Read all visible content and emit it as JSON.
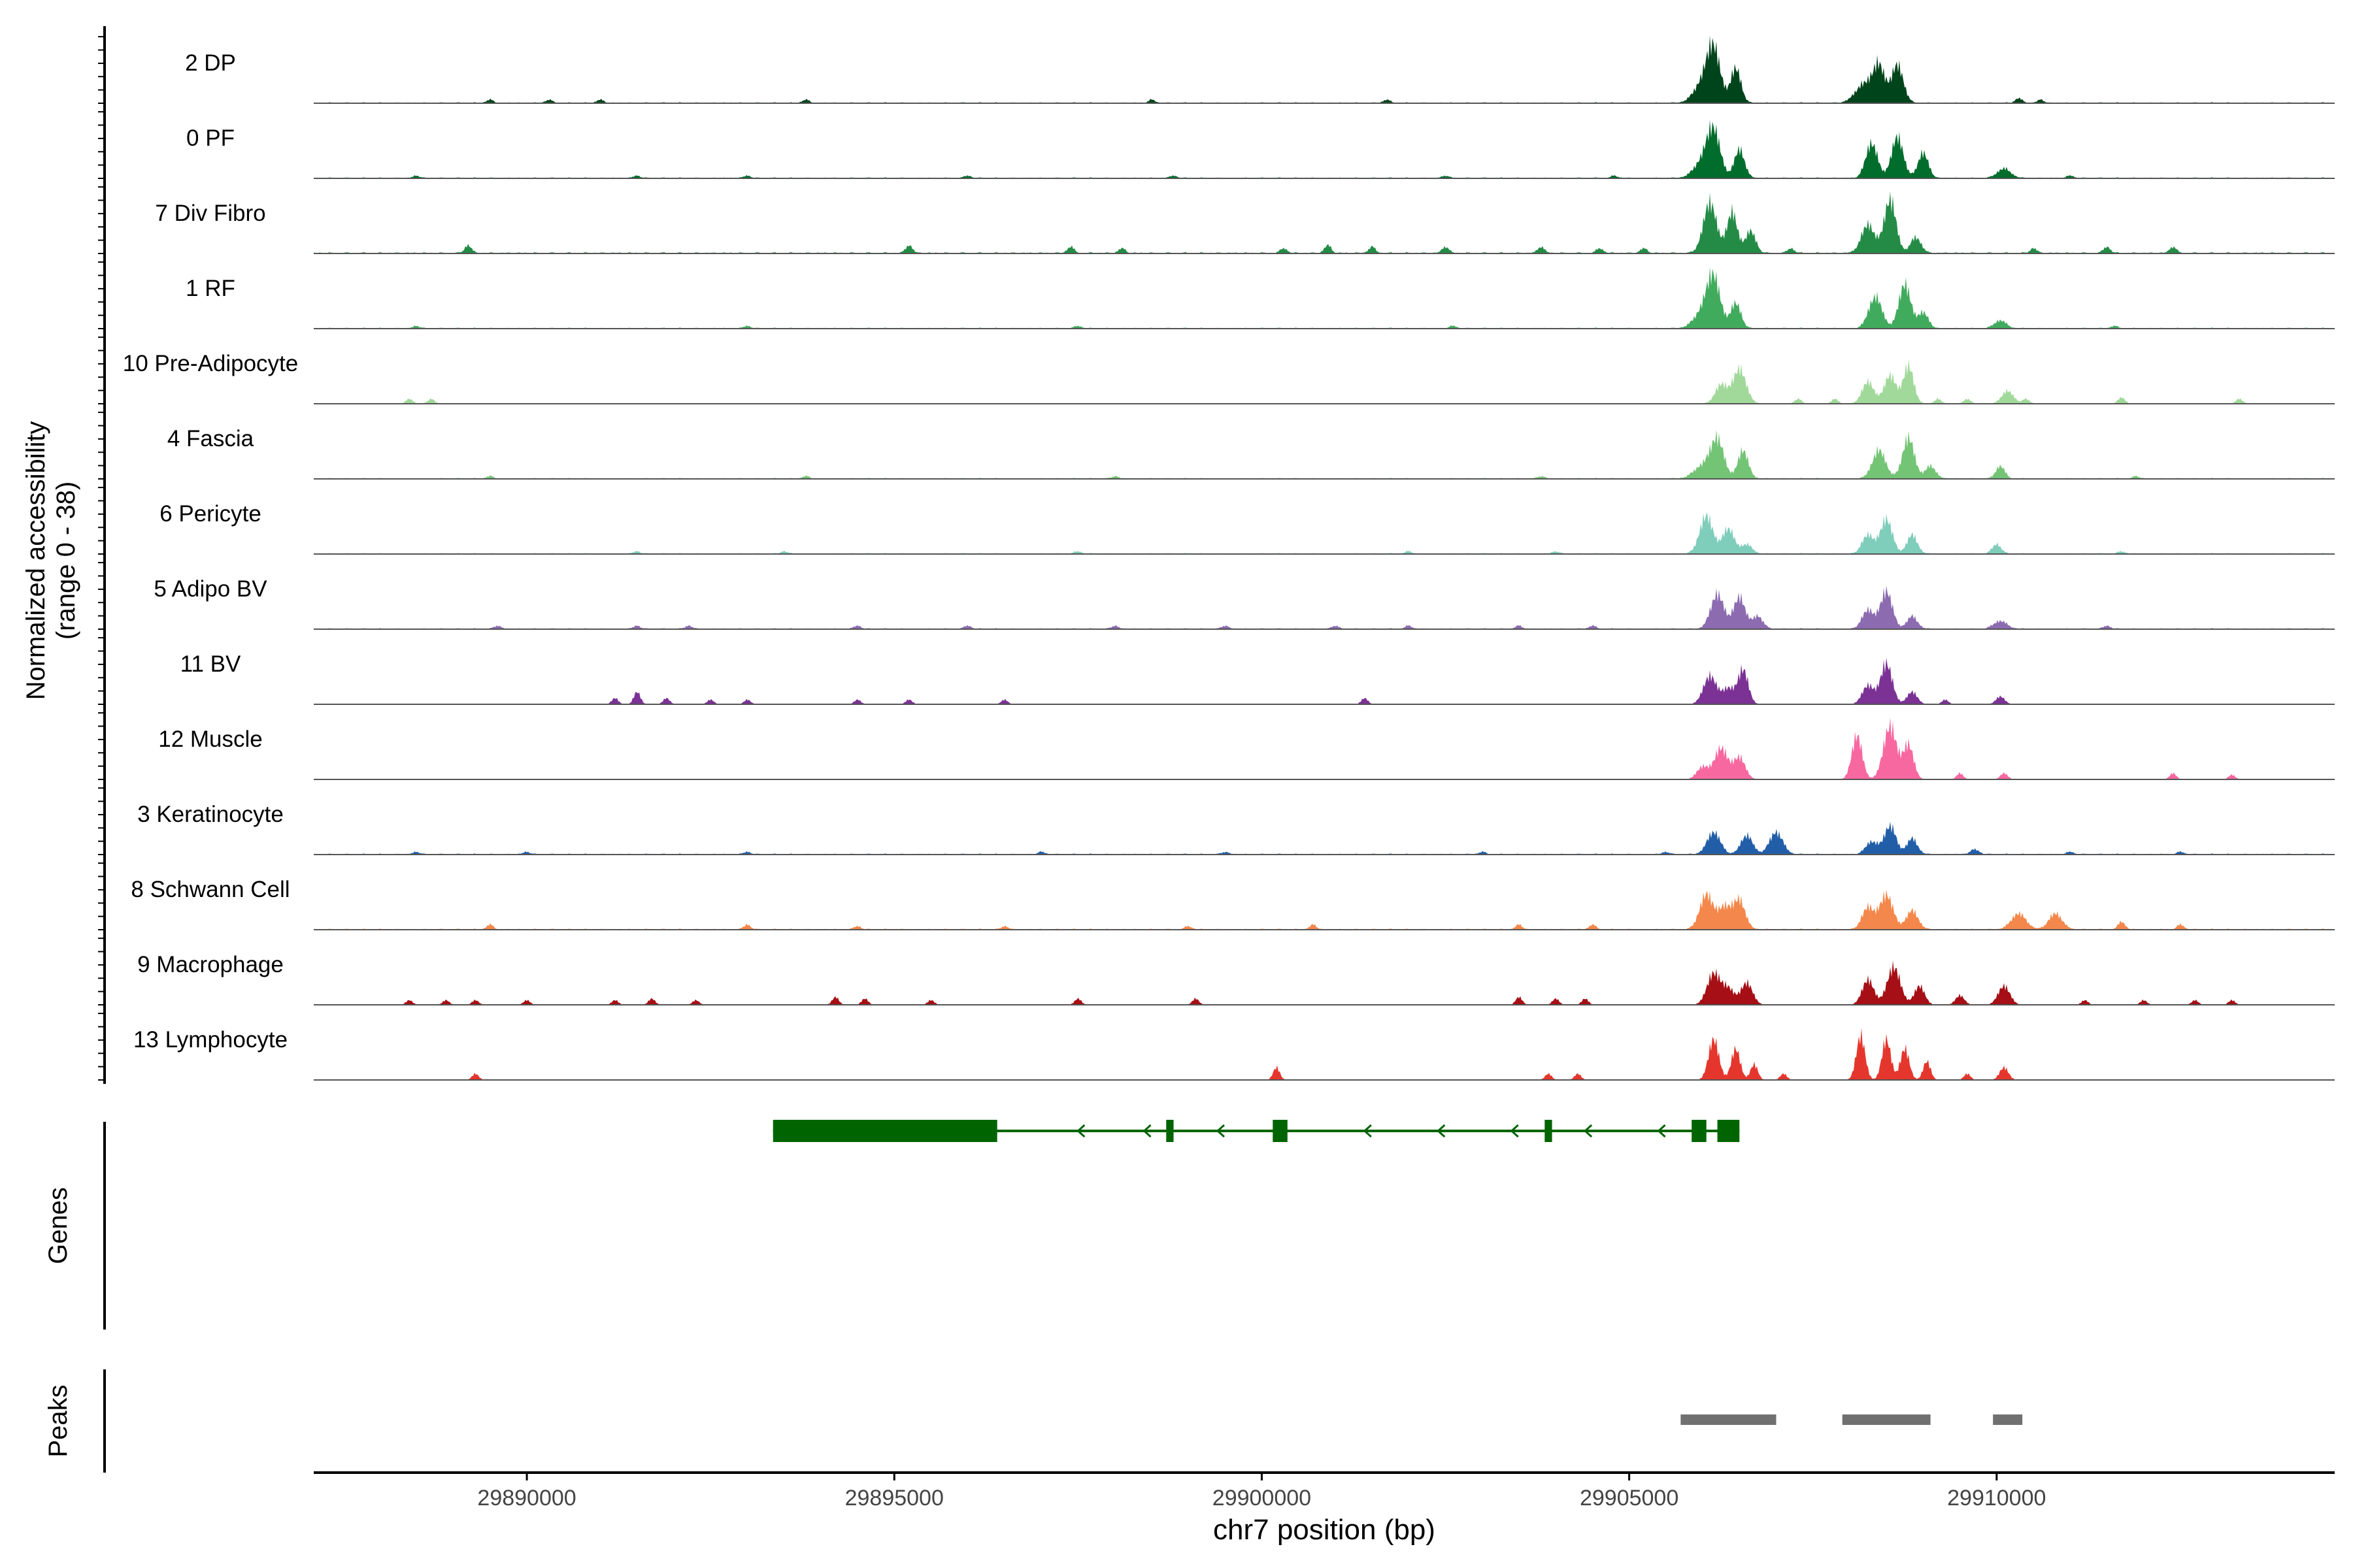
{
  "chart_data": {
    "type": "area",
    "title": "",
    "xlabel": "chr7 position (bp)",
    "ylabel_line1": "Normalized accessibility",
    "ylabel_line2": "(range 0 - 38)",
    "ylim": [
      0,
      38
    ],
    "xlim": [
      29887100,
      29914600
    ],
    "xticks": [
      {
        "value": 29890000,
        "label": "29890000"
      },
      {
        "value": 29895000,
        "label": "29895000"
      },
      {
        "value": 29900000,
        "label": "29900000"
      },
      {
        "value": 29905000,
        "label": "29905000"
      },
      {
        "value": 29910000,
        "label": "29910000"
      }
    ],
    "genes_label": "Genes",
    "peaks_label": "Peaks",
    "tracks": [
      {
        "name": "2 DP",
        "color": "#00441b",
        "baseline": 0.6,
        "peaks": [
          [
            29906150,
            90,
            32
          ],
          [
            29906450,
            70,
            22
          ],
          [
            29906000,
            120,
            12
          ],
          [
            29908400,
            80,
            22
          ],
          [
            29908650,
            80,
            24
          ],
          [
            29908200,
            120,
            12
          ]
        ],
        "blips": [
          [
            29889500,
            2
          ],
          [
            29890300,
            2
          ],
          [
            29891000,
            2
          ],
          [
            29893800,
            2
          ],
          [
            29898500,
            2
          ],
          [
            29901700,
            2
          ],
          [
            29910300,
            3
          ],
          [
            29910600,
            2
          ]
        ]
      },
      {
        "name": "0 PF",
        "color": "#006d2c",
        "baseline": 0.6,
        "peaks": [
          [
            29906150,
            90,
            28
          ],
          [
            29906500,
            70,
            18
          ],
          [
            29906000,
            120,
            10
          ],
          [
            29908300,
            80,
            22
          ],
          [
            29908650,
            80,
            26
          ],
          [
            29909000,
            70,
            16
          ],
          [
            29910100,
            90,
            6
          ]
        ],
        "blips": [
          [
            29888500,
            1.5
          ],
          [
            29891500,
            1.5
          ],
          [
            29893000,
            1.5
          ],
          [
            29896000,
            1.5
          ],
          [
            29898800,
            1.5
          ],
          [
            29902500,
            1.5
          ],
          [
            29904800,
            1.5
          ],
          [
            29911000,
            1.5
          ]
        ]
      },
      {
        "name": "7 Div Fibro",
        "color": "#238b45",
        "baseline": 0.8,
        "peaks": [
          [
            29906100,
            90,
            32
          ],
          [
            29906400,
            70,
            26
          ],
          [
            29906650,
            70,
            14
          ],
          [
            29908550,
            80,
            34
          ],
          [
            29908250,
            90,
            18
          ],
          [
            29908900,
            70,
            10
          ]
        ],
        "blips": [
          [
            29889200,
            5
          ],
          [
            29895200,
            5
          ],
          [
            29897400,
            4
          ],
          [
            29898100,
            3
          ],
          [
            29900300,
            3
          ],
          [
            29900900,
            5
          ],
          [
            29901500,
            4
          ],
          [
            29902500,
            4
          ],
          [
            29903800,
            4
          ],
          [
            29904600,
            3
          ],
          [
            29905200,
            3
          ],
          [
            29907200,
            3
          ],
          [
            29910500,
            3
          ],
          [
            29911500,
            4
          ],
          [
            29912400,
            4
          ]
        ]
      },
      {
        "name": "1 RF",
        "color": "#41ab5d",
        "baseline": 0.6,
        "peaks": [
          [
            29906150,
            90,
            30
          ],
          [
            29906450,
            70,
            16
          ],
          [
            29906000,
            120,
            10
          ],
          [
            29908350,
            90,
            20
          ],
          [
            29908750,
            80,
            28
          ],
          [
            29909000,
            70,
            10
          ],
          [
            29910050,
            80,
            5
          ]
        ],
        "blips": [
          [
            29888500,
            1.5
          ],
          [
            29893000,
            1.5
          ],
          [
            29897500,
            1.5
          ],
          [
            29902600,
            1.5
          ],
          [
            29911600,
            1.5
          ]
        ]
      },
      {
        "name": "10 Pre-Adipocyte",
        "color": "#a1d99b",
        "baseline": 0.3,
        "peaks": [
          [
            29906500,
            90,
            22
          ],
          [
            29906250,
            80,
            12
          ],
          [
            29908250,
            80,
            14
          ],
          [
            29908550,
            80,
            18
          ],
          [
            29908800,
            70,
            24
          ],
          [
            29910150,
            80,
            8
          ]
        ],
        "blips": [
          [
            29888400,
            3
          ],
          [
            29888700,
            3
          ],
          [
            29907300,
            3
          ],
          [
            29907800,
            3
          ],
          [
            29909200,
            3
          ],
          [
            29909600,
            3
          ],
          [
            29910400,
            3
          ],
          [
            29911700,
            4
          ],
          [
            29913300,
            3
          ]
        ]
      },
      {
        "name": "4 Fascia",
        "color": "#74c476",
        "baseline": 0.6,
        "peaks": [
          [
            29906200,
            90,
            24
          ],
          [
            29906550,
            70,
            18
          ],
          [
            29906000,
            120,
            8
          ],
          [
            29908400,
            90,
            18
          ],
          [
            29908800,
            80,
            26
          ],
          [
            29909100,
            70,
            8
          ],
          [
            29910050,
            60,
            8
          ]
        ],
        "blips": [
          [
            29889500,
            1.5
          ],
          [
            29893800,
            1.5
          ],
          [
            29898000,
            1.5
          ],
          [
            29903800,
            1.5
          ],
          [
            29911900,
            1.5
          ]
        ]
      },
      {
        "name": "6 Pericyte",
        "color": "#7fcdbb",
        "baseline": 0.6,
        "peaks": [
          [
            29906050,
            90,
            24
          ],
          [
            29906350,
            80,
            16
          ],
          [
            29906600,
            70,
            6
          ],
          [
            29908500,
            80,
            22
          ],
          [
            29908250,
            80,
            12
          ],
          [
            29908850,
            70,
            12
          ],
          [
            29910000,
            60,
            6
          ]
        ],
        "blips": [
          [
            29891500,
            1.5
          ],
          [
            29893500,
            1.5
          ],
          [
            29897500,
            1.5
          ],
          [
            29902000,
            1.5
          ],
          [
            29904000,
            1.5
          ],
          [
            29911700,
            1.5
          ]
        ]
      },
      {
        "name": "5 Adipo BV",
        "color": "#8c6bb1",
        "baseline": 0.6,
        "peaks": [
          [
            29906200,
            90,
            22
          ],
          [
            29906500,
            80,
            20
          ],
          [
            29906750,
            70,
            8
          ],
          [
            29908500,
            80,
            24
          ],
          [
            29908250,
            80,
            12
          ],
          [
            29908850,
            70,
            8
          ],
          [
            29910050,
            90,
            5
          ]
        ],
        "blips": [
          [
            29889600,
            2
          ],
          [
            29891500,
            2
          ],
          [
            29892200,
            2
          ],
          [
            29894500,
            2
          ],
          [
            29896000,
            2
          ],
          [
            29898000,
            2
          ],
          [
            29899500,
            2
          ],
          [
            29901000,
            2
          ],
          [
            29902000,
            2
          ],
          [
            29903500,
            2
          ],
          [
            29904500,
            2
          ],
          [
            29911500,
            2
          ]
        ]
      },
      {
        "name": "11 BV",
        "color": "#7b3294",
        "baseline": 0,
        "peaks": [
          [
            29906100,
            90,
            18
          ],
          [
            29906550,
            70,
            22
          ],
          [
            29906350,
            80,
            10
          ],
          [
            29908500,
            80,
            26
          ],
          [
            29908250,
            80,
            12
          ],
          [
            29908850,
            70,
            8
          ],
          [
            29910050,
            60,
            5
          ]
        ],
        "blips": [
          [
            29891200,
            4
          ],
          [
            29891500,
            8
          ],
          [
            29891900,
            4
          ],
          [
            29892500,
            3
          ],
          [
            29893000,
            3
          ],
          [
            29894500,
            3
          ],
          [
            29895200,
            3
          ],
          [
            29896500,
            3
          ],
          [
            29901400,
            4
          ],
          [
            29909300,
            3
          ]
        ]
      },
      {
        "name": "12 Muscle",
        "color": "#f768a1",
        "baseline": 0,
        "peaks": [
          [
            29906250,
            90,
            20
          ],
          [
            29906500,
            80,
            14
          ],
          [
            29906000,
            80,
            8
          ],
          [
            29908100,
            70,
            28
          ],
          [
            29908550,
            90,
            34
          ],
          [
            29908800,
            70,
            22
          ],
          [
            29910100,
            50,
            4
          ]
        ],
        "blips": [
          [
            29909500,
            4
          ],
          [
            29912400,
            4
          ],
          [
            29913200,
            3
          ]
        ]
      },
      {
        "name": "3 Keratinocyte",
        "color": "#225ea8",
        "baseline": 0.6,
        "peaks": [
          [
            29906150,
            90,
            14
          ],
          [
            29906600,
            80,
            12
          ],
          [
            29907000,
            90,
            14
          ],
          [
            29908550,
            80,
            18
          ],
          [
            29908300,
            80,
            8
          ],
          [
            29908850,
            70,
            10
          ],
          [
            29909700,
            60,
            3
          ]
        ],
        "blips": [
          [
            29888500,
            1.5
          ],
          [
            29890000,
            1.5
          ],
          [
            29893000,
            1.5
          ],
          [
            29897000,
            1.5
          ],
          [
            29899500,
            1.5
          ],
          [
            29903000,
            1.5
          ],
          [
            29905500,
            1.5
          ],
          [
            29911000,
            1.5
          ],
          [
            29912500,
            1.5
          ]
        ]
      },
      {
        "name": "8 Schwann Cell",
        "color": "#f4874b",
        "baseline": 0.6,
        "peaks": [
          [
            29906050,
            90,
            22
          ],
          [
            29906500,
            80,
            18
          ],
          [
            29906300,
            90,
            14
          ],
          [
            29908500,
            90,
            22
          ],
          [
            29908250,
            80,
            14
          ],
          [
            29908850,
            80,
            12
          ],
          [
            29910300,
            100,
            10
          ],
          [
            29910800,
            90,
            10
          ]
        ],
        "blips": [
          [
            29889500,
            3
          ],
          [
            29893000,
            3
          ],
          [
            29894500,
            2
          ],
          [
            29896500,
            2
          ],
          [
            29899000,
            2
          ],
          [
            29900700,
            3
          ],
          [
            29903500,
            3
          ],
          [
            29904500,
            3
          ],
          [
            29911700,
            5
          ],
          [
            29912500,
            3
          ]
        ]
      },
      {
        "name": "9 Macrophage",
        "color": "#a50f15",
        "baseline": 0,
        "peaks": [
          [
            29906150,
            90,
            20
          ],
          [
            29906600,
            80,
            14
          ],
          [
            29906350,
            80,
            10
          ],
          [
            29908600,
            90,
            24
          ],
          [
            29908250,
            80,
            16
          ],
          [
            29908950,
            70,
            12
          ],
          [
            29910100,
            80,
            12
          ],
          [
            29909500,
            60,
            6
          ]
        ],
        "blips": [
          [
            29888400,
            3
          ],
          [
            29888900,
            3
          ],
          [
            29889300,
            3
          ],
          [
            29890000,
            3
          ],
          [
            29891200,
            3
          ],
          [
            29891700,
            4
          ],
          [
            29892300,
            3
          ],
          [
            29894200,
            5
          ],
          [
            29894600,
            4
          ],
          [
            29895500,
            3
          ],
          [
            29897500,
            4
          ],
          [
            29899100,
            4
          ],
          [
            29903500,
            5
          ],
          [
            29904000,
            4
          ],
          [
            29904400,
            4
          ],
          [
            29911200,
            3
          ],
          [
            29912000,
            3
          ],
          [
            29912700,
            3
          ],
          [
            29913200,
            3
          ]
        ]
      },
      {
        "name": "13 Lymphocyte",
        "color": "#e5362d",
        "baseline": 0,
        "peaks": [
          [
            29906150,
            70,
            26
          ],
          [
            29906450,
            60,
            20
          ],
          [
            29906700,
            50,
            10
          ],
          [
            29908150,
            60,
            28
          ],
          [
            29908500,
            60,
            26
          ],
          [
            29908750,
            60,
            20
          ],
          [
            29909050,
            50,
            12
          ],
          [
            29910100,
            60,
            8
          ]
        ],
        "blips": [
          [
            29889300,
            4
          ],
          [
            29900200,
            8
          ],
          [
            29903900,
            4
          ],
          [
            29904300,
            4
          ],
          [
            29907100,
            4
          ],
          [
            29909600,
            4
          ]
        ]
      }
    ],
    "gene": {
      "color": "#006400",
      "start": 29893350,
      "end": 29906500,
      "strand": "-",
      "exons": [
        [
          29893350,
          29896400
        ],
        [
          29898700,
          29898800
        ],
        [
          29900150,
          29900350
        ],
        [
          29903850,
          29903950
        ],
        [
          29905850,
          29906050
        ],
        [
          29906200,
          29906500
        ]
      ],
      "arrows": [
        29897500,
        29898400,
        29899400,
        29901400,
        29902400,
        29903400,
        29904400,
        29905400
      ]
    },
    "peaks_track": {
      "color": "#707070",
      "regions": [
        [
          29905700,
          29907000
        ],
        [
          29907900,
          29909100
        ],
        [
          29909950,
          29910350
        ]
      ]
    }
  }
}
